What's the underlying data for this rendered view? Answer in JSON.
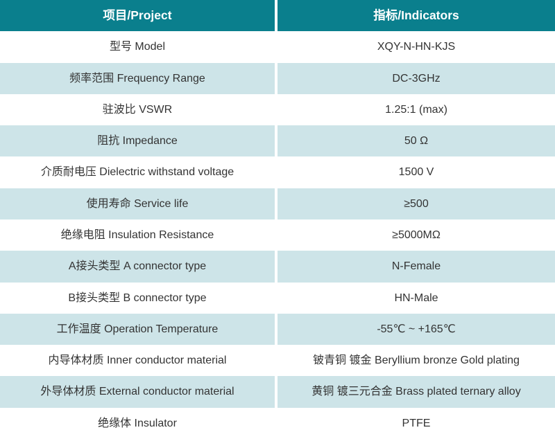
{
  "table": {
    "header": {
      "project": "项目/Project",
      "indicator": "指标/Indicators"
    },
    "rows": [
      {
        "project": "型号 Model",
        "indicator": "XQY-N-HN-KJS"
      },
      {
        "project": "频率范围 Frequency Range",
        "indicator": "DC-3GHz"
      },
      {
        "project": "驻波比 VSWR",
        "indicator": "1.25:1 (max)"
      },
      {
        "project": "阻抗 Impedance",
        "indicator": "50 Ω"
      },
      {
        "project": "介质耐电压 Dielectric withstand voltage",
        "indicator": "1500 V"
      },
      {
        "project": "使用寿命 Service life",
        "indicator": "≥500"
      },
      {
        "project": "绝缘电阻 Insulation Resistance",
        "indicator": "≥5000MΩ"
      },
      {
        "project": "A接头类型 A connector type",
        "indicator": "N-Female"
      },
      {
        "project": "B接头类型 B connector type",
        "indicator": "HN-Male"
      },
      {
        "project": "工作温度 Operation Temperature",
        "indicator": "-55℃ ~ +165℃"
      },
      {
        "project": "内导体材质 Inner conductor material",
        "indicator": "铍青铜 镀金 Beryllium bronze Gold plating"
      },
      {
        "project": "外导体材质 External conductor material",
        "indicator": "黄铜 镀三元合金 Brass plated ternary alloy"
      },
      {
        "project": "绝缘体 Insulator",
        "indicator": "PTFE"
      }
    ],
    "colors": {
      "header_bg": "#0a7f8d",
      "header_text": "#ffffff",
      "alt_row_bg": "#cde4e8",
      "row_bg": "#ffffff",
      "body_text": "#333333",
      "divider": "#ffffff"
    }
  }
}
